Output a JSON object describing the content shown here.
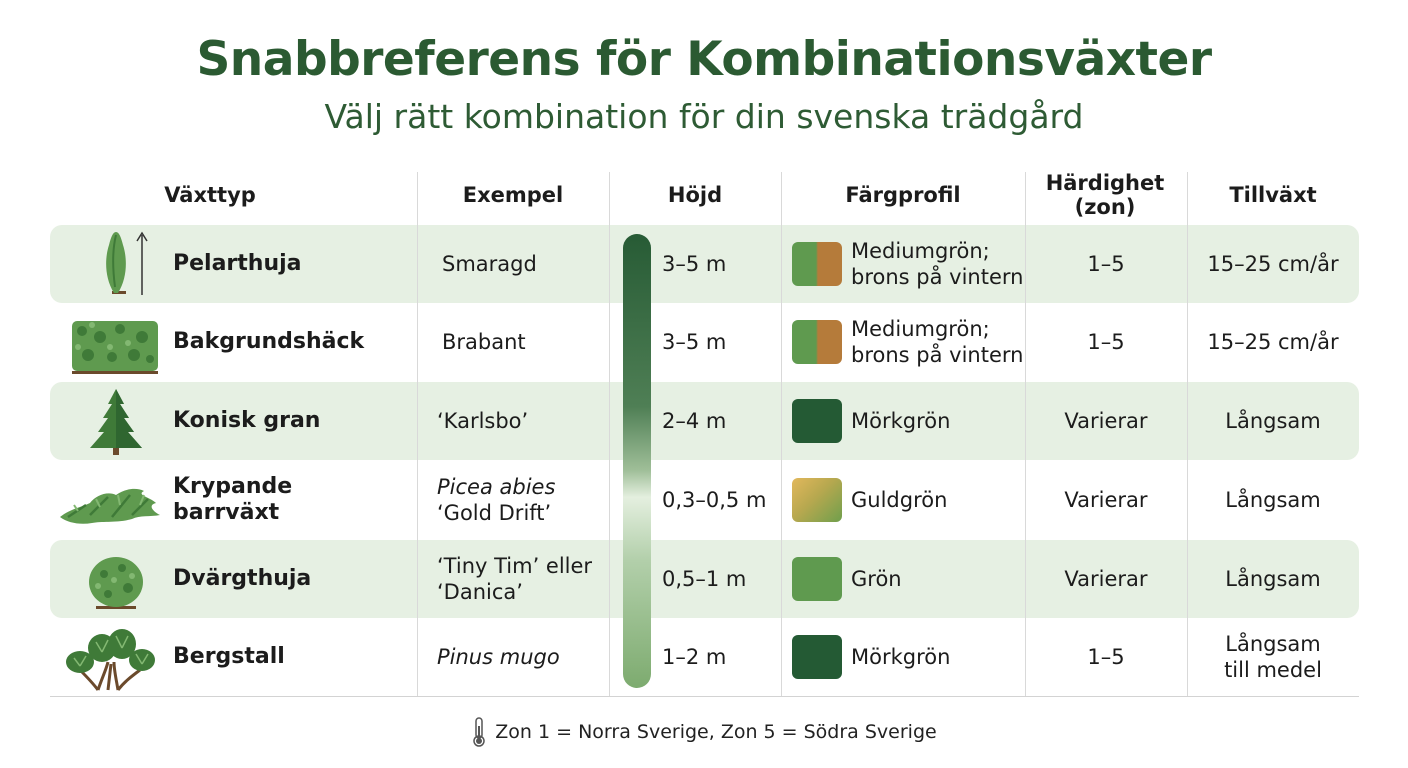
{
  "title": "Snabbreferens för Kombinationsväxter",
  "subtitle": "Välj rätt kombination för din svenska trädgård",
  "headers": {
    "type": "Växttyp",
    "example": "Exempel",
    "height": "Höjd",
    "color": "Färgprofil",
    "hardiness_line1": "Härdighet",
    "hardiness_line2": "(zon)",
    "growth": "Tillväxt"
  },
  "rows": [
    {
      "type": "Pelarthuja",
      "icon": "columnar-thuja-icon",
      "example": "Smaragd",
      "height": "3–5 m",
      "color_line1": "Mediumgrön;",
      "color_line2": "brons på vintern",
      "swatch": [
        "#5f9a4f",
        "#b57b3a"
      ],
      "hardiness": "1–5",
      "growth": "15–25 cm/år"
    },
    {
      "type": "Bakgrundshäck",
      "icon": "hedge-icon",
      "example": "Brabant",
      "height": "3–5 m",
      "color_line1": "Mediumgrön;",
      "color_line2": "brons på vintern",
      "swatch": [
        "#5f9a4f",
        "#b57b3a"
      ],
      "hardiness": "1–5",
      "growth": "15–25 cm/år"
    },
    {
      "type": "Konisk gran",
      "icon": "conical-spruce-icon",
      "example": "‘Karlsbo’",
      "height": "2–4 m",
      "color_line1": "Mörkgrön",
      "color_line2": "",
      "swatch": [
        "#245a34",
        "#245a34"
      ],
      "hardiness": "Varierar",
      "growth": "Långsam"
    },
    {
      "type_line1": "Krypande",
      "type_line2": "barrväxt",
      "icon": "creeping-conifer-icon",
      "example_line1": "Picea abies",
      "example_line2": "‘Gold Drift’",
      "height": "0,3–0,5 m",
      "color_line1": "Guldgrön",
      "color_line2": "",
      "swatch": [
        "#d9b45a",
        "#6f9f4c"
      ],
      "hardiness": "Varierar",
      "growth": "Långsam"
    },
    {
      "type": "Dvärgthuja",
      "icon": "dwarf-thuja-icon",
      "example_line1": "‘Tiny Tim’ eller",
      "example_line2": "‘Danica’",
      "height": "0,5–1 m",
      "color_line1": "Grön",
      "color_line2": "",
      "swatch": [
        "#5f9a4f",
        "#5f9a4f"
      ],
      "hardiness": "Varierar",
      "growth": "Långsam"
    },
    {
      "type": "Bergstall",
      "icon": "mountain-pine-icon",
      "example": "Pinus mugo",
      "height": "1–2 m",
      "color_line1": "Mörkgrön",
      "color_line2": "",
      "swatch": [
        "#245a34",
        "#245a34"
      ],
      "hardiness": "1–5",
      "growth_line1": "Långsam",
      "growth_line2": "till medel"
    }
  ],
  "footnote": "Zon 1 = Norra Sverige, Zon 5 = Södra Sverige",
  "footnote_icon": "thermometer-icon"
}
